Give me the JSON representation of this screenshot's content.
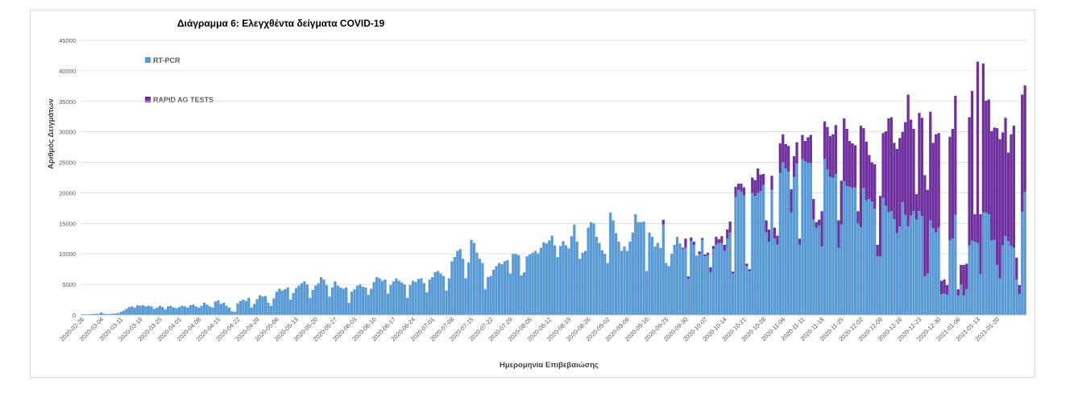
{
  "chart_data": {
    "type": "bar",
    "stacked": true,
    "title": "Διάγραμμα 6: Ελεγχθέντα δείγματα COVID-19",
    "xlabel": "Ημερομηνία Επιβεβαιώσης",
    "ylabel": "Αριθμός Δειγμάτων",
    "ylim": [
      0,
      45000
    ],
    "yticks": [
      0,
      5000,
      10000,
      15000,
      20000,
      25000,
      30000,
      35000,
      40000,
      45000
    ],
    "grid": true,
    "legend_position": "top-left",
    "colors": {
      "RT-PCR": "#5b9bd5",
      "RAPID AG TESTS": "#7030a0"
    },
    "x_start": "2020-02-26",
    "x_end": "2021-01-27",
    "x_tick_labels": [
      "2020-02-26",
      "2020-03-04",
      "2020-03-11",
      "2020-03-18",
      "2020-03-25",
      "2020-04-01",
      "2020-04-08",
      "2020-04-15",
      "2020-04-22",
      "2020-04-29",
      "2020-05-06",
      "2020-05-13",
      "2020-05-20",
      "2020-05-27",
      "2020-06-03",
      "2020-06-10",
      "2020-06-17",
      "2020-06-24",
      "2020-07-01",
      "2020-07-08",
      "2020-07-15",
      "2020-07-22",
      "2020-07-29",
      "2020-08-05",
      "2020-08-12",
      "2020-08-19",
      "2020-08-26",
      "2020-09-02",
      "2020-09-09",
      "2020-09-16",
      "2020-09-23",
      "2020-09-30",
      "2020-10-07",
      "2020-10-14",
      "2020-10-21",
      "2020-10-28",
      "2020-11-04",
      "2020-11-11",
      "2020-11-18",
      "2020-11-25",
      "2020-12-02",
      "2020-12-09",
      "2020-12-16",
      "2020-12-23",
      "2020-12-30",
      "2021-01-06",
      "2021-01-13",
      "2021-01-20"
    ],
    "weekly_values": [
      {
        "week_of": "2020-02-26",
        "rt_pcr": [
          100,
          100,
          100,
          150,
          150,
          200,
          200
        ],
        "rapid_ag": [
          0,
          0,
          0,
          0,
          0,
          0,
          0
        ]
      },
      {
        "week_of": "2020-03-04",
        "rt_pcr": [
          400,
          200,
          150,
          150,
          200,
          250,
          300
        ],
        "rapid_ag": [
          0,
          0,
          0,
          0,
          0,
          0,
          0
        ]
      },
      {
        "week_of": "2020-03-11",
        "rt_pcr": [
          500,
          700,
          1000,
          1300,
          1400,
          1200,
          1600
        ],
        "rapid_ag": [
          0,
          0,
          0,
          0,
          0,
          0,
          0
        ]
      },
      {
        "week_of": "2020-03-18",
        "rt_pcr": [
          1500,
          1600,
          1400,
          1500,
          1400,
          1000,
          1200
        ],
        "rapid_ag": [
          0,
          0,
          0,
          0,
          0,
          0,
          0
        ]
      },
      {
        "week_of": "2020-03-25",
        "rt_pcr": [
          1500,
          1300,
          900,
          1400,
          1500,
          1200,
          1100
        ],
        "rapid_ag": [
          0,
          0,
          0,
          0,
          0,
          0,
          0
        ]
      },
      {
        "week_of": "2020-04-01",
        "rt_pcr": [
          1300,
          1500,
          1400,
          1200,
          1600,
          1700,
          1400
        ],
        "rapid_ag": [
          0,
          0,
          0,
          0,
          0,
          0,
          0
        ]
      },
      {
        "week_of": "2020-04-08",
        "rt_pcr": [
          1200,
          1500,
          2000,
          1700,
          1400,
          1200,
          2200
        ],
        "rapid_ag": [
          0,
          0,
          0,
          0,
          0,
          0,
          0
        ]
      },
      {
        "week_of": "2020-04-15",
        "rt_pcr": [
          2400,
          1800,
          2000,
          1500,
          1200,
          600,
          500
        ],
        "rapid_ag": [
          0,
          0,
          0,
          0,
          0,
          0,
          0
        ]
      },
      {
        "week_of": "2020-04-22",
        "rt_pcr": [
          1900,
          2300,
          2500,
          2300,
          2800,
          1200,
          1800
        ],
        "rapid_ag": [
          0,
          0,
          0,
          0,
          0,
          0,
          0
        ]
      },
      {
        "week_of": "2020-04-29",
        "rt_pcr": [
          2600,
          3200,
          3000,
          3100,
          2000,
          1500,
          2700
        ],
        "rapid_ag": [
          0,
          0,
          0,
          0,
          0,
          0,
          0
        ]
      },
      {
        "week_of": "2020-05-06",
        "rt_pcr": [
          3800,
          4300,
          4000,
          4200,
          4500,
          2500,
          3600
        ],
        "rapid_ag": [
          0,
          0,
          0,
          0,
          0,
          0,
          0
        ]
      },
      {
        "week_of": "2020-05-13",
        "rt_pcr": [
          4400,
          4800,
          5200,
          5500,
          5000,
          2800,
          4100
        ],
        "rapid_ag": [
          0,
          0,
          0,
          0,
          0,
          0,
          0
        ]
      },
      {
        "week_of": "2020-05-20",
        "rt_pcr": [
          4800,
          5200,
          6200,
          5800,
          4900,
          3000,
          4500
        ],
        "rapid_ag": [
          0,
          0,
          0,
          0,
          0,
          0,
          0
        ]
      },
      {
        "week_of": "2020-05-27",
        "rt_pcr": [
          5500,
          4800,
          4500,
          4300,
          4500,
          2000,
          3800
        ],
        "rapid_ag": [
          0,
          0,
          0,
          0,
          0,
          0,
          0
        ]
      },
      {
        "week_of": "2020-06-03",
        "rt_pcr": [
          4200,
          4800,
          5000,
          4600,
          4500,
          3300,
          4300
        ],
        "rapid_ag": [
          0,
          0,
          0,
          0,
          0,
          0,
          0
        ]
      },
      {
        "week_of": "2020-06-10",
        "rt_pcr": [
          5400,
          6200,
          6000,
          5600,
          5800,
          3500,
          4900
        ],
        "rapid_ag": [
          0,
          0,
          0,
          0,
          0,
          0,
          0
        ]
      },
      {
        "week_of": "2020-06-17",
        "rt_pcr": [
          5500,
          6000,
          5600,
          5300,
          5000,
          2800,
          4900
        ],
        "rapid_ag": [
          0,
          0,
          0,
          0,
          0,
          0,
          0
        ]
      },
      {
        "week_of": "2020-06-24",
        "rt_pcr": [
          5600,
          5400,
          5900,
          6000,
          5200,
          3700,
          5800
        ],
        "rapid_ag": [
          0,
          0,
          0,
          0,
          0,
          0,
          0
        ]
      },
      {
        "week_of": "2020-07-01",
        "rt_pcr": [
          6200,
          7000,
          7200,
          6800,
          6400,
          4000,
          6000
        ],
        "rapid_ag": [
          0,
          0,
          0,
          0,
          0,
          0,
          0
        ]
      },
      {
        "week_of": "2020-07-08",
        "rt_pcr": [
          8800,
          9500,
          10500,
          10800,
          9200,
          6000,
          8600
        ],
        "rapid_ag": [
          0,
          0,
          0,
          0,
          0,
          0,
          0
        ]
      },
      {
        "week_of": "2020-07-15",
        "rt_pcr": [
          12300,
          11800,
          10200,
          9200,
          8500,
          4200,
          6200
        ],
        "rapid_ag": [
          0,
          0,
          0,
          0,
          0,
          0,
          0
        ]
      },
      {
        "week_of": "2020-07-22",
        "rt_pcr": [
          6400,
          7400,
          8000,
          8500,
          8300,
          8800,
          9000
        ],
        "rapid_ag": [
          0,
          0,
          0,
          0,
          0,
          0,
          0
        ]
      },
      {
        "week_of": "2020-07-29",
        "rt_pcr": [
          6800,
          10000,
          10000,
          9800,
          6500,
          7000,
          9600
        ],
        "rapid_ag": [
          0,
          0,
          0,
          0,
          0,
          0,
          0
        ]
      },
      {
        "week_of": "2020-08-05",
        "rt_pcr": [
          9900,
          10200,
          10500,
          10100,
          11000,
          11900,
          11700
        ],
        "rapid_ag": [
          0,
          0,
          0,
          0,
          0,
          0,
          0
        ]
      },
      {
        "week_of": "2020-08-12",
        "rt_pcr": [
          12200,
          13000,
          11400,
          9500,
          11300,
          12100,
          11400
        ],
        "rapid_ag": [
          0,
          0,
          0,
          0,
          0,
          0,
          0
        ]
      },
      {
        "week_of": "2020-08-19",
        "rt_pcr": [
          10900,
          12900,
          14800,
          12000,
          9200,
          10200,
          10500
        ],
        "rapid_ag": [
          0,
          0,
          0,
          0,
          0,
          0,
          0
        ]
      },
      {
        "week_of": "2020-08-26",
        "rt_pcr": [
          14300,
          15200,
          15000,
          12800,
          11800,
          10600,
          10000
        ],
        "rapid_ag": [
          0,
          0,
          0,
          0,
          0,
          0,
          0
        ]
      },
      {
        "week_of": "2020-09-02",
        "rt_pcr": [
          8500,
          16800,
          15500,
          13400,
          12000,
          10500,
          11200
        ],
        "rapid_ag": [
          0,
          0,
          0,
          0,
          0,
          0,
          0
        ]
      },
      {
        "week_of": "2020-09-09",
        "rt_pcr": [
          10500,
          12000,
          13500,
          16500,
          15200,
          15200,
          15300
        ],
        "rapid_ag": [
          0,
          0,
          0,
          0,
          0,
          0,
          0
        ]
      },
      {
        "week_of": "2020-09-16",
        "rt_pcr": [
          7200,
          13500,
          12800,
          11200,
          11800,
          11000,
          14800
        ],
        "rapid_ag": [
          0,
          0,
          0,
          0,
          0,
          0,
          800
        ]
      },
      {
        "week_of": "2020-09-23",
        "rt_pcr": [
          8500,
          8000,
          10000,
          11500,
          12800,
          11700,
          10800
        ],
        "rapid_ag": [
          0,
          0,
          0,
          0,
          0,
          0,
          200
        ]
      },
      {
        "week_of": "2020-09-30",
        "rt_pcr": [
          11000,
          6000,
          12100,
          11500,
          9600,
          10000,
          12300
        ],
        "rapid_ag": [
          1500,
          300,
          600,
          500,
          100,
          400,
          300
        ]
      },
      {
        "week_of": "2020-10-07",
        "rt_pcr": [
          9600,
          9800,
          7000,
          10800,
          11500,
          11800,
          11800
        ],
        "rapid_ag": [
          300,
          400,
          800,
          500,
          1300,
          600,
          1100
        ]
      },
      {
        "week_of": "2020-10-14",
        "rt_pcr": [
          10500,
          12500,
          13500,
          6800,
          19300,
          20500,
          20200
        ],
        "rapid_ag": [
          1000,
          1500,
          1800,
          300,
          1700,
          1000,
          1300
        ]
      },
      {
        "week_of": "2020-10-21",
        "rt_pcr": [
          19600,
          8000,
          7200,
          20000,
          19500,
          20000,
          20300
        ],
        "rapid_ag": [
          1300,
          400,
          300,
          2500,
          2600,
          4000,
          2700
        ]
      },
      {
        "week_of": "2020-10-28",
        "rt_pcr": [
          21300,
          13500,
          12000,
          20500,
          12500,
          11500,
          23300
        ],
        "rapid_ag": [
          1800,
          2000,
          2000,
          2300,
          1800,
          1500,
          4800
        ]
      },
      {
        "week_of": "2020-11-04",
        "rt_pcr": [
          25000,
          24000,
          23500,
          16800,
          22600,
          24800,
          11500
        ],
        "rapid_ag": [
          4600,
          4000,
          4200,
          3800,
          3400,
          3500,
          1000
        ]
      },
      {
        "week_of": "2020-11-11",
        "rt_pcr": [
          25500,
          25200,
          24900,
          24900,
          15600,
          14300,
          14700
        ],
        "rapid_ag": [
          4000,
          3300,
          4200,
          4600,
          3400,
          900,
          900
        ]
      },
      {
        "week_of": "2020-11-18",
        "rt_pcr": [
          11200,
          25600,
          23800,
          22600,
          22500,
          23100,
          11000
        ],
        "rapid_ag": [
          5800,
          6100,
          7000,
          6700,
          7100,
          8000,
          4500
        ]
      },
      {
        "week_of": "2020-11-25",
        "rt_pcr": [
          14800,
          21900,
          21100,
          21000,
          20800,
          20900,
          15000
        ],
        "rapid_ag": [
          7200,
          10300,
          9400,
          7500,
          7300,
          6900,
          2000
        ]
      },
      {
        "week_of": "2020-12-02",
        "rt_pcr": [
          14400,
          20800,
          18800,
          19000,
          18600,
          17400,
          9600
        ],
        "rapid_ag": [
          16600,
          9800,
          9600,
          7200,
          6400,
          7300,
          1900
        ]
      },
      {
        "week_of": "2020-12-09",
        "rt_pcr": [
          9600,
          19200,
          17900,
          16800,
          17000,
          15700,
          13400
        ],
        "rapid_ag": [
          9900,
          10600,
          12200,
          15400,
          15400,
          12500,
          13800
        ]
      },
      {
        "week_of": "2020-12-16",
        "rt_pcr": [
          14500,
          18500,
          16400,
          14500,
          16300,
          17000,
          15600
        ],
        "rapid_ag": [
          14500,
          11500,
          15200,
          21600,
          15700,
          13500,
          4200
        ]
      },
      {
        "week_of": "2020-12-23",
        "rt_pcr": [
          17000,
          16200,
          6300,
          6800,
          15500,
          14200,
          13500
        ],
        "rapid_ag": [
          16100,
          16100,
          16600,
          13700,
          17800,
          14000,
          16100
        ]
      },
      {
        "week_of": "2020-12-30",
        "rt_pcr": [
          14300,
          3400,
          3500,
          3300,
          12200,
          12500,
          16400
        ],
        "rapid_ag": [
          15500,
          2200,
          2300,
          1600,
          17000,
          18000,
          19500
        ]
      },
      {
        "week_of": "2021-01-06",
        "rt_pcr": [
          3200,
          5000,
          3200,
          4200,
          11400,
          12200,
          12000
        ],
        "rapid_ag": [
          1000,
          3200,
          5000,
          4200,
          21000,
          24500,
          4500
        ]
      },
      {
        "week_of": "2021-01-13",
        "rt_pcr": [
          11800,
          6700,
          16800,
          16800,
          16500,
          12200,
          12300
        ],
        "rapid_ag": [
          29700,
          9800,
          24400,
          18300,
          18800,
          17900,
          18400
        ]
      },
      {
        "week_of": "2021-01-20",
        "rt_pcr": [
          8200,
          6000,
          11400,
          12900,
          12100,
          11300,
          11000
        ],
        "rapid_ag": [
          22400,
          22800,
          18500,
          19400,
          14500,
          18300,
          20000
        ]
      },
      {
        "week_of": "2021-01-27",
        "rt_pcr": [
          5800,
          3400,
          16900,
          20200
        ],
        "rapid_ag": [
          3600,
          1500,
          19200,
          17400
        ]
      }
    ]
  }
}
